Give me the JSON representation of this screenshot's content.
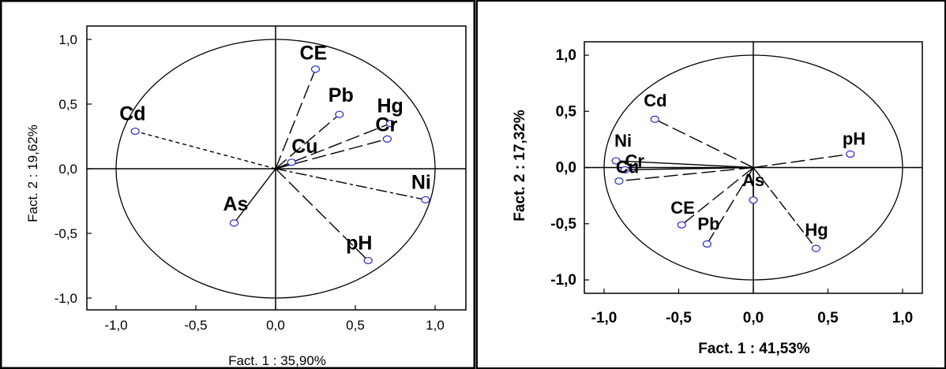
{
  "chart_data": [
    {
      "type": "scatter",
      "xlabel": "Fact. 1  : 35,90%",
      "ylabel": "Fact. 2 : 19,62%",
      "xlim": [
        -1.0,
        1.0
      ],
      "ylim": [
        -1.0,
        1.0
      ],
      "xticks": [
        "-1,0",
        "-0,5",
        "0,0",
        "0,5",
        "1,0"
      ],
      "yticks": [
        "1,0",
        "0,5",
        "0,0",
        "-0,5",
        "-1,0"
      ],
      "grid": false,
      "points": [
        {
          "label": "CE",
          "x": 0.25,
          "y": 0.77
        },
        {
          "label": "Pb",
          "x": 0.4,
          "y": 0.42
        },
        {
          "label": "Hg",
          "x": 0.72,
          "y": 0.35
        },
        {
          "label": "Cr",
          "x": 0.7,
          "y": 0.23
        },
        {
          "label": "Cu",
          "x": 0.1,
          "y": 0.05
        },
        {
          "label": "Cd",
          "x": -0.88,
          "y": 0.29
        },
        {
          "label": "Ni",
          "x": 0.94,
          "y": -0.24
        },
        {
          "label": "As",
          "x": -0.26,
          "y": -0.42
        },
        {
          "label": "pH",
          "x": 0.58,
          "y": -0.71
        }
      ]
    },
    {
      "type": "scatter",
      "xlabel": "Fact. 1  : 41,53%",
      "ylabel": "Fact. 2 : 17,32%",
      "xlim": [
        -1.0,
        1.0
      ],
      "ylim": [
        -1.0,
        1.0
      ],
      "xticks": [
        "-1,0",
        "-0,5",
        "0,0",
        "0,5",
        "1,0"
      ],
      "yticks": [
        "1,0",
        "0,5",
        "0,0",
        "-0,5",
        "-1,0"
      ],
      "grid": false,
      "points": [
        {
          "label": "Cd",
          "x": -0.66,
          "y": 0.43
        },
        {
          "label": "Ni",
          "x": -0.92,
          "y": 0.06
        },
        {
          "label": "Cr",
          "x": -0.86,
          "y": -0.02
        },
        {
          "label": "Cu",
          "x": -0.9,
          "y": -0.12
        },
        {
          "label": "pH",
          "x": 0.65,
          "y": 0.12
        },
        {
          "label": "As",
          "x": 0.0,
          "y": -0.29
        },
        {
          "label": "CE",
          "x": -0.48,
          "y": -0.51
        },
        {
          "label": "Pb",
          "x": -0.31,
          "y": -0.68
        },
        {
          "label": "Hg",
          "x": 0.42,
          "y": -0.72
        }
      ]
    }
  ]
}
